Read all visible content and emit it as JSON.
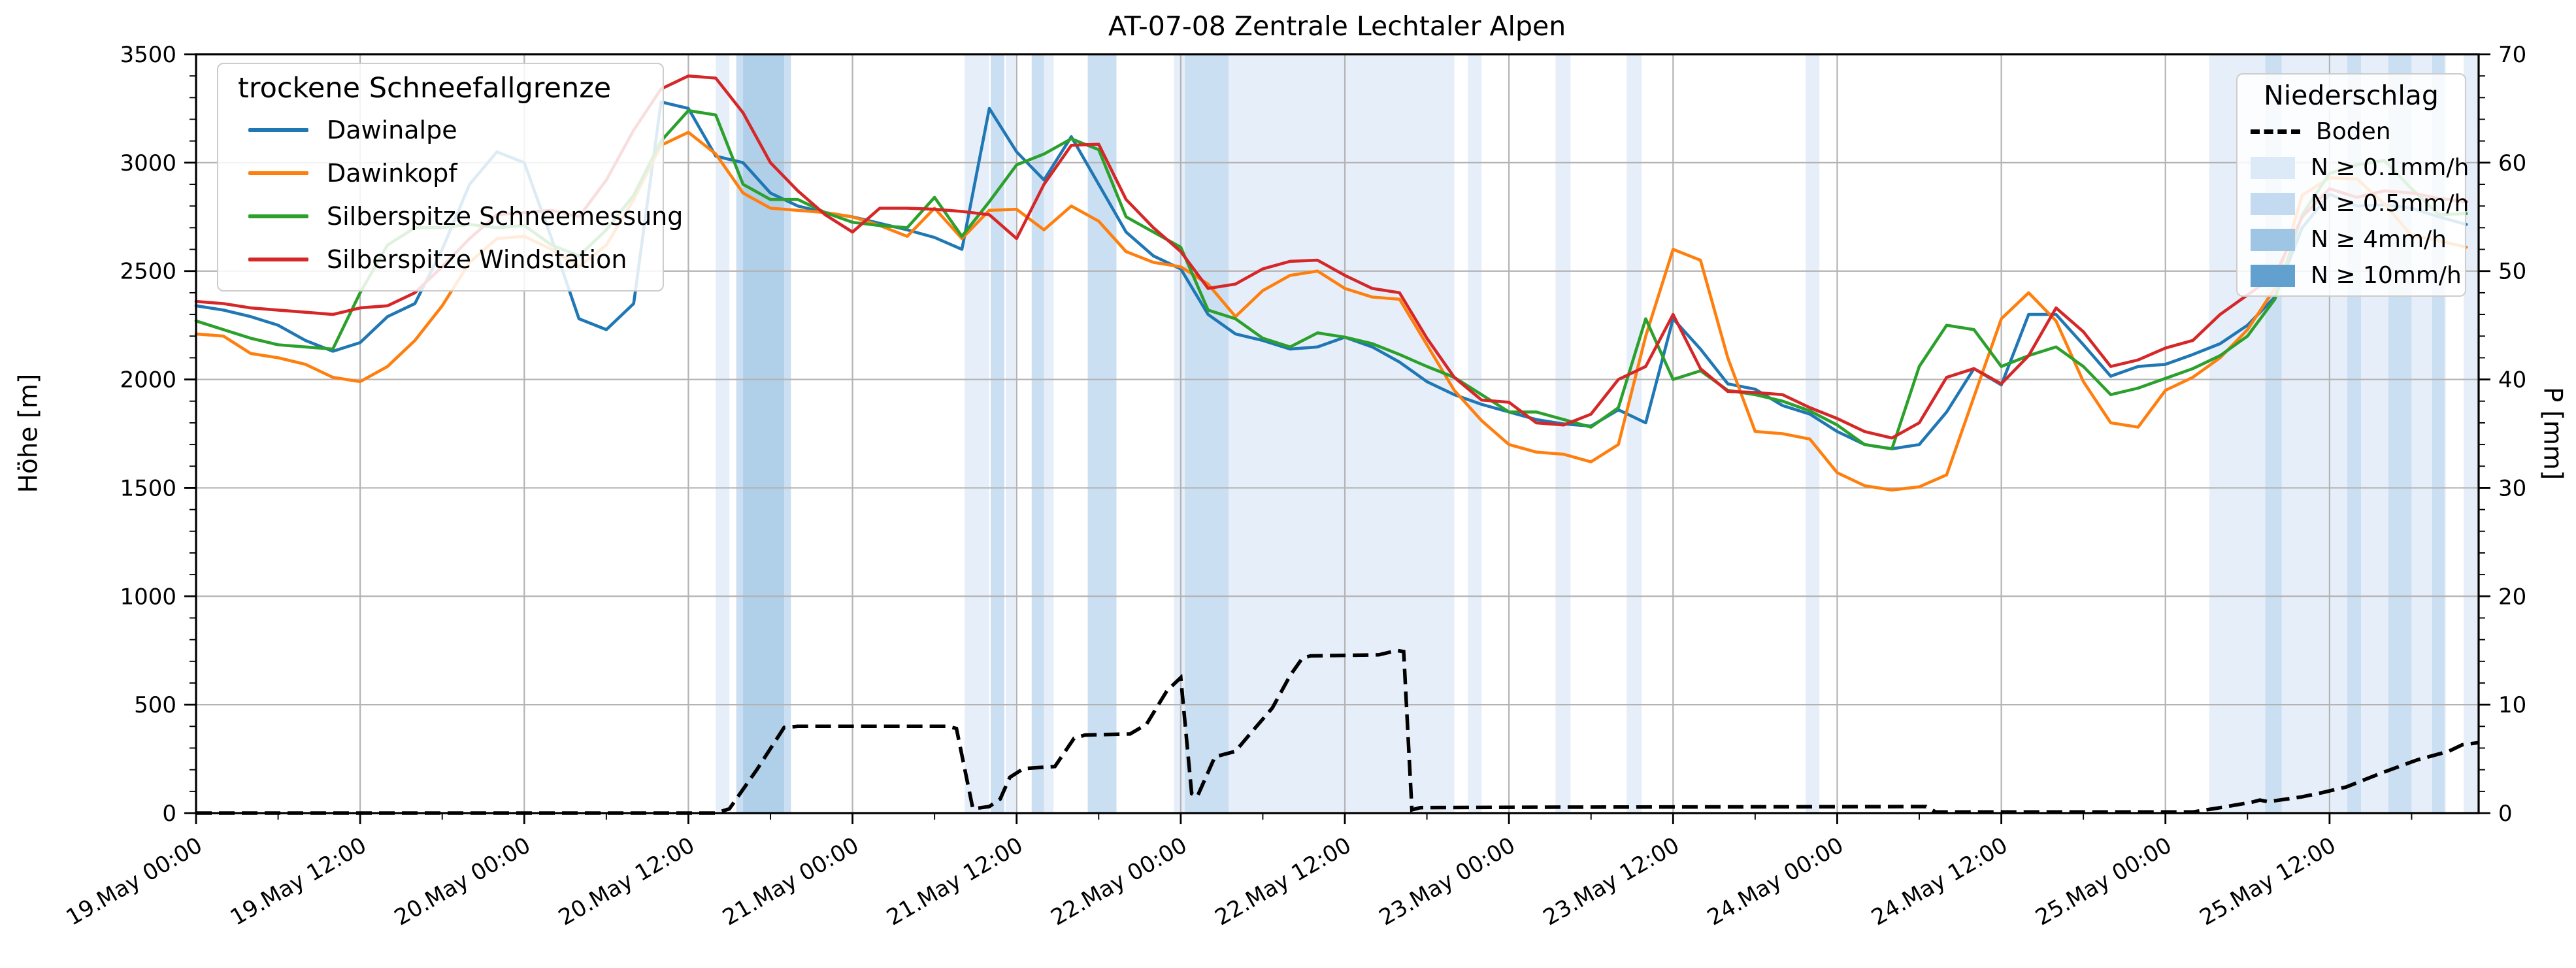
{
  "title": "AT-07-08 Zentrale Lechtaler Alpen",
  "axes": {
    "y_left": {
      "label": "Höhe [m]",
      "min": 0,
      "max": 3500,
      "major_step": 500,
      "minor_step": 100,
      "tick_labels": [
        "0",
        "500",
        "1000",
        "1500",
        "2000",
        "2500",
        "3000",
        "3500"
      ]
    },
    "y_right": {
      "label": "P [mm]",
      "min": 0,
      "max": 70,
      "major_step": 10,
      "minor_step": 2,
      "tick_labels": [
        "0",
        "10",
        "20",
        "30",
        "40",
        "50",
        "60",
        "70"
      ]
    },
    "x": {
      "start": "19 May 00:00",
      "end_hours": 166.9,
      "major_step_h": 12,
      "minor_step_h": 6,
      "tick_labels": [
        "19.May 00:00",
        "19.May 12:00",
        "20.May 00:00",
        "20.May 12:00",
        "21.May 00:00",
        "21.May 12:00",
        "22.May 00:00",
        "22.May 12:00",
        "23.May 00:00",
        "23.May 12:00",
        "24.May 00:00",
        "24.May 12:00",
        "25.May 00:00",
        "25.May 12:00"
      ]
    }
  },
  "legend_left": {
    "title": "trockene Schneefallgrenze",
    "items": [
      {
        "label": "Dawinalpe",
        "color": "#1f77b4"
      },
      {
        "label": "Dawinkopf",
        "color": "#ff7f0e"
      },
      {
        "label": "Silberspitze Schneemessung",
        "color": "#2ca02c"
      },
      {
        "label": "Silberspitze Windstation",
        "color": "#d62728"
      }
    ]
  },
  "legend_right": {
    "title": "Niederschlag",
    "items": [
      {
        "label": "Boden",
        "type": "dashed-line",
        "color": "#000000"
      },
      {
        "label": "N ≥ 0.1mm/h",
        "type": "patch",
        "color": "#dcEAf7"
      },
      {
        "label": "N ≥ 0.5mm/h",
        "type": "patch",
        "color": "#c3daf0"
      },
      {
        "label": "N ≥ 4mm/h",
        "type": "patch",
        "color": "#9fc5e4"
      },
      {
        "label": "N ≥ 10mm/h",
        "type": "patch",
        "color": "#62a0cf"
      }
    ]
  },
  "chart_data": {
    "type": "line",
    "title": "AT-07-08 Zentrale Lechtaler Alpen",
    "xlabel": "",
    "ylabel_left": "Höhe [m]",
    "ylabel_right": "P [mm]",
    "ylim_left": [
      0,
      3500
    ],
    "ylim_right": [
      0,
      70
    ],
    "x_unit": "hours since 19 May 00:00",
    "x": [
      0,
      2,
      4,
      6,
      8,
      10,
      12,
      14,
      16,
      18,
      20,
      22,
      24,
      26,
      28,
      30,
      32,
      34,
      36,
      38,
      40,
      42,
      44,
      46,
      48,
      50,
      52,
      54,
      56,
      58,
      60,
      62,
      64,
      66,
      68,
      70,
      72,
      74,
      76,
      78,
      80,
      82,
      84,
      86,
      88,
      90,
      92,
      94,
      96,
      98,
      100,
      102,
      104,
      106,
      108,
      110,
      112,
      114,
      116,
      118,
      120,
      122,
      124,
      126,
      128,
      130,
      132,
      134,
      136,
      138,
      140,
      142,
      144,
      146,
      148,
      150,
      152,
      154,
      156,
      158,
      160,
      162,
      164,
      166
    ],
    "series": [
      {
        "name": "Dawinalpe",
        "color": "#1f77b4",
        "unit": "m",
        "values": [
          2340,
          2320,
          2290,
          2250,
          2180,
          2130,
          2170,
          2290,
          2350,
          2600,
          2900,
          3050,
          3000,
          2650,
          2280,
          2230,
          2350,
          3280,
          3250,
          3030,
          3000,
          2860,
          2800,
          2770,
          2750,
          2720,
          2690,
          2655,
          2600,
          3250,
          3050,
          2920,
          3120,
          2900,
          2680,
          2570,
          2510,
          2300,
          2210,
          2180,
          2140,
          2150,
          2195,
          2150,
          2080,
          1990,
          1930,
          1885,
          1850,
          1815,
          1795,
          1785,
          1860,
          1800,
          2280,
          2140,
          1980,
          1955,
          1880,
          1840,
          1760,
          1700,
          1680,
          1700,
          1850,
          2050,
          1975,
          2300,
          2300,
          2160,
          2015,
          2060,
          2070,
          2115,
          2165,
          2250,
          2380,
          2700,
          2855,
          2800,
          2805,
          2790,
          2750,
          2715
        ]
      },
      {
        "name": "Dawinkopf",
        "color": "#ff7f0e",
        "unit": "m",
        "values": [
          2210,
          2200,
          2120,
          2100,
          2070,
          2010,
          1990,
          2060,
          2180,
          2340,
          2540,
          2650,
          2660,
          2600,
          2520,
          2620,
          2830,
          3080,
          3140,
          3040,
          2860,
          2790,
          2780,
          2770,
          2750,
          2710,
          2660,
          2790,
          2650,
          2780,
          2785,
          2690,
          2800,
          2730,
          2590,
          2540,
          2520,
          2440,
          2290,
          2410,
          2480,
          2500,
          2420,
          2380,
          2370,
          2160,
          1950,
          1810,
          1700,
          1665,
          1655,
          1620,
          1700,
          2200,
          2600,
          2550,
          2100,
          1760,
          1750,
          1725,
          1570,
          1510,
          1490,
          1505,
          1560,
          1920,
          2280,
          2400,
          2270,
          1990,
          1800,
          1780,
          1950,
          2010,
          2100,
          2230,
          2420,
          2850,
          2930,
          2925,
          2810,
          2665,
          2640,
          2610
        ]
      },
      {
        "name": "Silberspitze Schneemessung",
        "color": "#2ca02c",
        "unit": "m",
        "values": [
          2270,
          2230,
          2190,
          2160,
          2150,
          2140,
          2400,
          2620,
          2700,
          2700,
          2715,
          2700,
          2710,
          2620,
          2570,
          2690,
          2850,
          3100,
          3240,
          3220,
          2900,
          2830,
          2830,
          2770,
          2725,
          2710,
          2700,
          2840,
          2660,
          2820,
          2990,
          3040,
          3110,
          3060,
          2750,
          2680,
          2610,
          2320,
          2280,
          2190,
          2150,
          2215,
          2195,
          2165,
          2115,
          2060,
          2010,
          1930,
          1850,
          1850,
          1815,
          1780,
          1870,
          2280,
          2000,
          2040,
          1950,
          1930,
          1900,
          1855,
          1790,
          1700,
          1680,
          2060,
          2250,
          2230,
          2060,
          2110,
          2150,
          2060,
          1930,
          1960,
          2005,
          2050,
          2110,
          2200,
          2370,
          2760,
          2950,
          2990,
          3010,
          2880,
          2760,
          2765
        ]
      },
      {
        "name": "Silberspitze Windstation",
        "color": "#d62728",
        "unit": "m",
        "values": [
          2360,
          2350,
          2330,
          2320,
          2310,
          2300,
          2330,
          2340,
          2400,
          2520,
          2650,
          2760,
          2770,
          2780,
          2750,
          2920,
          3150,
          3340,
          3400,
          3390,
          3230,
          3000,
          2870,
          2760,
          2680,
          2790,
          2790,
          2785,
          2775,
          2760,
          2650,
          2900,
          3080,
          3085,
          2830,
          2700,
          2590,
          2420,
          2440,
          2510,
          2545,
          2550,
          2480,
          2420,
          2400,
          2190,
          2010,
          1905,
          1895,
          1800,
          1790,
          1840,
          2000,
          2060,
          2300,
          2050,
          1945,
          1940,
          1930,
          1870,
          1820,
          1760,
          1730,
          1800,
          2010,
          2050,
          1980,
          2110,
          2330,
          2220,
          2060,
          2090,
          2145,
          2180,
          2300,
          2390,
          2480,
          2750,
          2880,
          2840,
          2870,
          2860,
          2835,
          2820
        ]
      }
    ],
    "boden": {
      "name": "Boden",
      "axis": "right",
      "unit": "mm",
      "style": "dashed-black",
      "points": [
        [
          0,
          0
        ],
        [
          38,
          0
        ],
        [
          39,
          0.4
        ],
        [
          41,
          4.0
        ],
        [
          43,
          7.9
        ],
        [
          44,
          8.0
        ],
        [
          55,
          8.0
        ],
        [
          55.6,
          7.8
        ],
        [
          56.8,
          0.4
        ],
        [
          58,
          0.6
        ],
        [
          58.8,
          1.3
        ],
        [
          59.5,
          3.3
        ],
        [
          60.5,
          4.1
        ],
        [
          62.8,
          4.3
        ],
        [
          64.2,
          6.9
        ],
        [
          65,
          7.2
        ],
        [
          68.3,
          7.3
        ],
        [
          69.5,
          8.2
        ],
        [
          71,
          11.3
        ],
        [
          72,
          12.5
        ],
        [
          72.8,
          1.8
        ],
        [
          73.2,
          1.5
        ],
        [
          74.5,
          5.2
        ],
        [
          76,
          5.7
        ],
        [
          77,
          7.2
        ],
        [
          78.7,
          9.7
        ],
        [
          80,
          12.7
        ],
        [
          80.9,
          14.3
        ],
        [
          81.5,
          14.5
        ],
        [
          86.5,
          14.6
        ],
        [
          87.8,
          15.0
        ],
        [
          88.3,
          14.9
        ],
        [
          88.9,
          0.3
        ],
        [
          89.5,
          0.5
        ],
        [
          100,
          0.55
        ],
        [
          126.5,
          0.6
        ],
        [
          127.2,
          0.1
        ],
        [
          146,
          0.1
        ],
        [
          148,
          0.5
        ],
        [
          150.3,
          1.0
        ],
        [
          150.9,
          1.2
        ],
        [
          151.5,
          1.05
        ],
        [
          154,
          1.5
        ],
        [
          155.5,
          1.9
        ],
        [
          157.2,
          2.4
        ],
        [
          159.8,
          3.7
        ],
        [
          162.4,
          4.9
        ],
        [
          164.7,
          5.7
        ],
        [
          165.7,
          6.3
        ],
        [
          166.9,
          6.5
        ]
      ]
    },
    "precip_bands": [
      {
        "start_h": 38.0,
        "end_h": 39.0,
        "level": "0.1"
      },
      {
        "start_h": 39.5,
        "end_h": 43.5,
        "level": "0.5"
      },
      {
        "start_h": 40.0,
        "end_h": 43.0,
        "level": "4"
      },
      {
        "start_h": 56.2,
        "end_h": 58.0,
        "level": "0.1"
      },
      {
        "start_h": 58.1,
        "end_h": 59.1,
        "level": "0.5"
      },
      {
        "start_h": 59.2,
        "end_h": 59.9,
        "level": "0.1"
      },
      {
        "start_h": 61.1,
        "end_h": 62.0,
        "level": "0.5"
      },
      {
        "start_h": 62.0,
        "end_h": 62.7,
        "level": "0.1"
      },
      {
        "start_h": 65.2,
        "end_h": 67.3,
        "level": "0.5"
      },
      {
        "start_h": 71.5,
        "end_h": 92.0,
        "level": "0.1"
      },
      {
        "start_h": 72.3,
        "end_h": 75.5,
        "level": "0.5"
      },
      {
        "start_h": 93.0,
        "end_h": 94.0,
        "level": "0.1"
      },
      {
        "start_h": 99.4,
        "end_h": 100.5,
        "level": "0.1"
      },
      {
        "start_h": 104.6,
        "end_h": 105.7,
        "level": "0.1"
      },
      {
        "start_h": 117.7,
        "end_h": 118.7,
        "level": "0.1"
      },
      {
        "start_h": 147.2,
        "end_h": 164.5,
        "level": "0.1"
      },
      {
        "start_h": 151.3,
        "end_h": 152.5,
        "level": "0.5"
      },
      {
        "start_h": 157.3,
        "end_h": 158.3,
        "level": "0.5"
      },
      {
        "start_h": 160.3,
        "end_h": 162.0,
        "level": "0.5"
      },
      {
        "start_h": 163.5,
        "end_h": 164.4,
        "level": "0.5"
      },
      {
        "start_h": 165.8,
        "end_h": 166.9,
        "level": "0.1"
      }
    ],
    "band_colors": {
      "0.1": "#e6eff9",
      "0.5": "#cbdff2",
      "4": "#b0cfe9",
      "10": "#62a0cf"
    },
    "grid": {
      "show": true,
      "color": "#b3b3b3"
    },
    "legend_positions": {
      "left": "upper left",
      "right": "upper right"
    }
  }
}
